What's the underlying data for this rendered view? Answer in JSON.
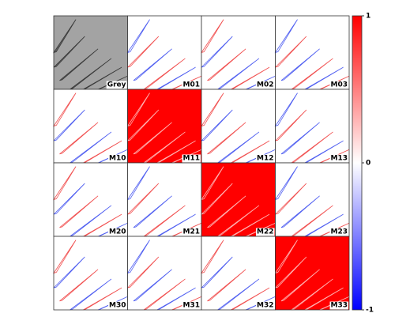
{
  "chart_data": {
    "type": "image-grid",
    "panels": [
      {
        "label": "Grey",
        "color": "#a3a3a3"
      },
      {
        "label": "M01",
        "color": "#ffffff"
      },
      {
        "label": "M02",
        "color": "#ffffff"
      },
      {
        "label": "M03",
        "color": "#ffffff"
      },
      {
        "label": "M10",
        "color": "#ffffff"
      },
      {
        "label": "M11",
        "color": "#ff0000"
      },
      {
        "label": "M12",
        "color": "#ffffff"
      },
      {
        "label": "M13",
        "color": "#ffffff"
      },
      {
        "label": "M20",
        "color": "#ffffff"
      },
      {
        "label": "M21",
        "color": "#ffffff"
      },
      {
        "label": "M22",
        "color": "#ff0000"
      },
      {
        "label": "M23",
        "color": "#ffffff"
      },
      {
        "label": "M30",
        "color": "#ffffff"
      },
      {
        "label": "M31",
        "color": "#ffffff"
      },
      {
        "label": "M32",
        "color": "#ffffff"
      },
      {
        "label": "M33",
        "color": "#ff0000"
      }
    ],
    "colorbar": {
      "ylim": [
        -1,
        1
      ],
      "yticks": [
        1,
        0,
        -1
      ],
      "colors": [
        "#0000ff",
        "#ffffff",
        "#ff0000"
      ]
    }
  }
}
